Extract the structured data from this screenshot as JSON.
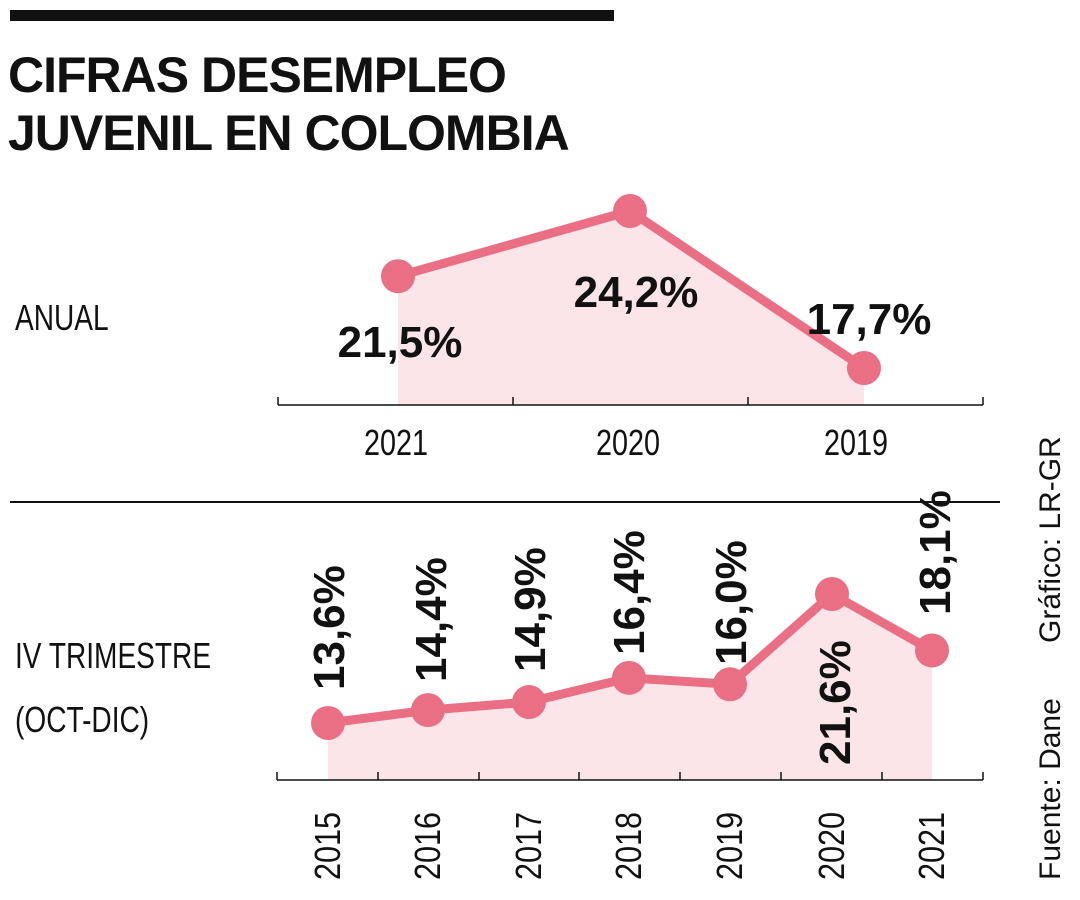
{
  "title_lines": [
    "CIFRAS DESEMPLEO",
    "JUVENIL EN COLOMBIA"
  ],
  "sections": {
    "annual_label": "ANUAL",
    "quarter_label_lines": [
      "IV TRIMESTRE",
      "(OCT-DIC)"
    ]
  },
  "credits": {
    "source": "Fuente: Dane",
    "graphic": "Gráfico: LR-GR"
  },
  "colors": {
    "line": "#ea6f85",
    "fill": "#fbe5e8",
    "text": "#111111"
  },
  "chart_data": [
    {
      "type": "area",
      "title": "ANUAL",
      "categories": [
        "2021",
        "2020",
        "2019"
      ],
      "values": [
        21.5,
        24.2,
        17.7
      ],
      "value_labels": [
        "21,5%",
        "24,2%",
        "17,7%"
      ],
      "unit": "%"
    },
    {
      "type": "area",
      "title": "IV TRIMESTRE (OCT-DIC)",
      "categories": [
        "2015",
        "2016",
        "2017",
        "2018",
        "2019",
        "2020",
        "2021"
      ],
      "values": [
        13.6,
        14.4,
        14.9,
        16.4,
        16.0,
        21.6,
        18.1
      ],
      "value_labels": [
        "13,6%",
        "14,4%",
        "14,9%",
        "16,4%",
        "16,0%",
        "21,6%",
        "18,1%"
      ],
      "unit": "%"
    }
  ]
}
